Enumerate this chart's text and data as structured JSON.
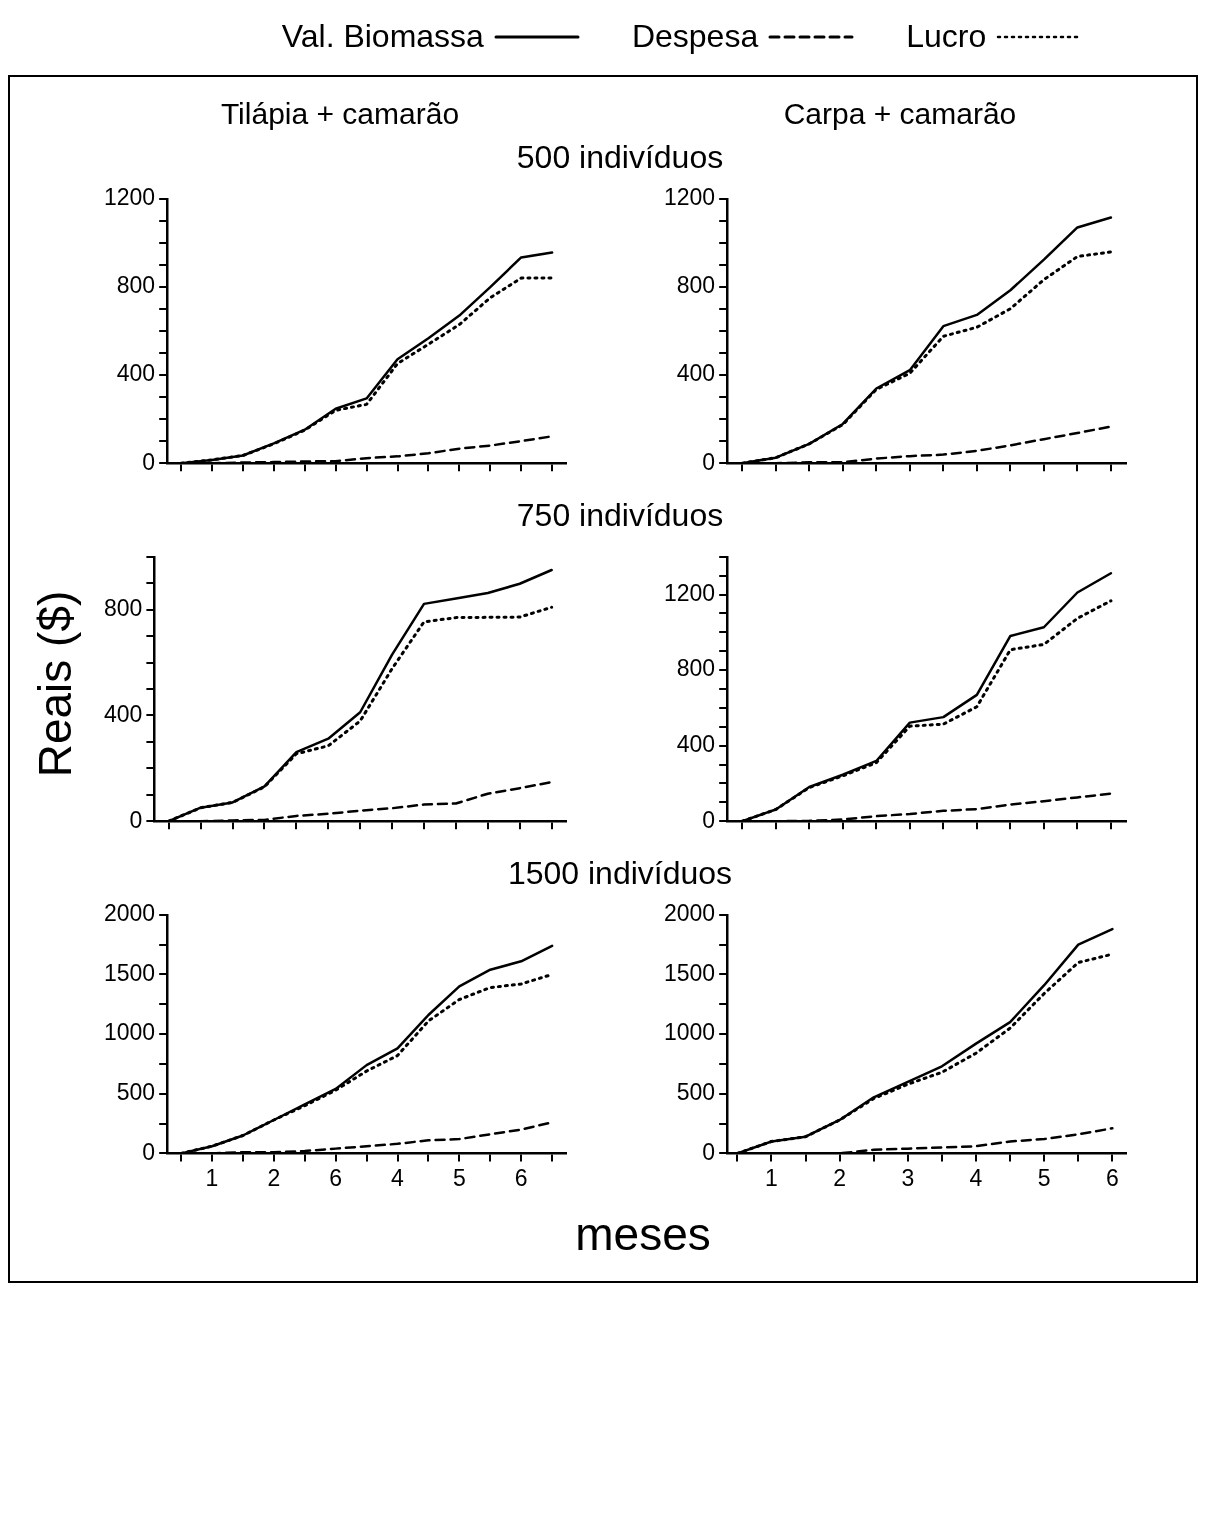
{
  "chart_data": [
    {
      "type": "line",
      "title": "Tilápia + camarão",
      "legend": "top",
      "tick_labels": "y",
      "grid": false,
      "categories": [
        null,
        null,
        null,
        null,
        null,
        null,
        null,
        null,
        null,
        null,
        null,
        null,
        null
      ],
      "ylim": [
        0,
        1200
      ],
      "yticks": [
        0,
        {
          "value": 100,
          "label": null
        },
        {
          "value": 200,
          "label": null
        },
        {
          "value": 300,
          "label": null
        },
        400,
        {
          "value": 500,
          "label": null
        },
        {
          "value": 600,
          "label": null
        },
        {
          "value": 700,
          "label": null
        },
        800,
        {
          "value": 900,
          "label": null
        },
        {
          "value": 1000,
          "label": null
        },
        {
          "value": 1100,
          "label": null
        },
        1200
      ],
      "series": [
        {
          "name": "Val. Biomassa",
          "color": "#000000",
          "line_style": "solid",
          "values": [
            0,
            15,
            35,
            90,
            152,
            247,
            294,
            472,
            567,
            670,
            799,
            934,
            956
          ]
        },
        {
          "name": "Despesa",
          "color": "#000000",
          "line_style": "dashed",
          "values": [
            0,
            0,
            3,
            5,
            8,
            9,
            23,
            31,
            45,
            66,
            80,
            100,
            122
          ]
        },
        {
          "name": "Lucro",
          "color": "#000000",
          "line_style": "dotted",
          "values": [
            0,
            15,
            35,
            88,
            150,
            240,
            267,
            452,
            540,
            629,
            751,
            840,
            841
          ]
        }
      ]
    },
    {
      "type": "line",
      "title": "Carpa + camarão",
      "subtitle": "500 indivíduos",
      "tick_labels": "y",
      "grid": false,
      "categories": [
        null,
        null,
        null,
        null,
        null,
        null,
        null,
        null,
        null,
        null,
        null,
        null
      ],
      "ylim": [
        0,
        1200
      ],
      "yticks": [
        0,
        {
          "value": 100,
          "label": null
        },
        {
          "value": 200,
          "label": null
        },
        {
          "value": 300,
          "label": null
        },
        400,
        {
          "value": 500,
          "label": null
        },
        {
          "value": 600,
          "label": null
        },
        {
          "value": 700,
          "label": null
        },
        800,
        {
          "value": 900,
          "label": null
        },
        {
          "value": 1000,
          "label": null
        },
        {
          "value": 1100,
          "label": null
        },
        1200
      ],
      "series": [
        {
          "color": "#000000",
          "line_style": "solid",
          "values": [
            0,
            25,
            88,
            178,
            339,
            422,
            622,
            673,
            785,
            924,
            1070,
            1115
          ]
        },
        {
          "color": "#000000",
          "line_style": "dashed",
          "values": [
            0,
            0,
            4,
            4,
            21,
            32,
            39,
            56,
            81,
            109,
            137,
            166
          ]
        },
        {
          "color": "#000000",
          "line_style": "dotted",
          "values": [
            0,
            25,
            88,
            175,
            335,
            408,
            576,
            617,
            701,
            833,
            938,
            959
          ]
        }
      ]
    },
    {
      "type": "line",
      "ylabel": "Reais ($)",
      "tick_labels": "y",
      "grid": false,
      "categories": [
        null,
        null,
        null,
        null,
        null,
        null,
        null,
        null,
        null,
        null,
        null,
        null,
        null
      ],
      "ylim": [
        0,
        1000
      ],
      "yticks": [
        0,
        {
          "value": 100,
          "label": null
        },
        {
          "value": 200,
          "label": null
        },
        {
          "value": 300,
          "label": null
        },
        400,
        {
          "value": 500,
          "label": null
        },
        {
          "value": 600,
          "label": null
        },
        {
          "value": 700,
          "label": null
        },
        800,
        {
          "value": 900,
          "label": null
        },
        {
          "value": 1000,
          "label": null
        }
      ],
      "series": [
        {
          "color": "#000000",
          "line_style": "solid",
          "values": [
            0,
            51,
            71,
            132,
            261,
            312,
            412,
            630,
            822,
            842,
            863,
            898,
            950
          ]
        },
        {
          "color": "#000000",
          "line_style": "dashed",
          "values": [
            0,
            0,
            3,
            5,
            20,
            28,
            40,
            49,
            63,
            67,
            104,
            125,
            148
          ]
        },
        {
          "color": "#000000",
          "line_style": "dotted",
          "values": [
            0,
            51,
            71,
            130,
            255,
            285,
            379,
            577,
            754,
            770,
            771,
            772,
            809
          ]
        }
      ]
    },
    {
      "type": "line",
      "subtitle": "750 indivíduos",
      "tick_labels": "y",
      "grid": false,
      "categories": [
        null,
        null,
        null,
        null,
        null,
        null,
        null,
        null,
        null,
        null,
        null,
        null
      ],
      "ylim": [
        0,
        1400
      ],
      "yticks": [
        0,
        {
          "value": 100,
          "label": null
        },
        {
          "value": 200,
          "label": null
        },
        {
          "value": 300,
          "label": null
        },
        400,
        {
          "value": 500,
          "label": null
        },
        {
          "value": 600,
          "label": null
        },
        {
          "value": 700,
          "label": null
        },
        800,
        {
          "value": 900,
          "label": null
        },
        {
          "value": 1000,
          "label": null
        },
        {
          "value": 1100,
          "label": null
        },
        1200,
        {
          "value": 1300,
          "label": null
        },
        {
          "value": 1400,
          "label": null
        }
      ],
      "series": [
        {
          "color": "#000000",
          "line_style": "solid",
          "values": [
            0,
            62,
            181,
            246,
            319,
            522,
            551,
            669,
            981,
            1027,
            1211,
            1313
          ]
        },
        {
          "color": "#000000",
          "line_style": "dashed",
          "values": [
            0,
            0,
            2,
            9,
            27,
            38,
            55,
            64,
            88,
            106,
            126,
            146
          ]
        },
        {
          "color": "#000000",
          "line_style": "dotted",
          "values": [
            0,
            62,
            178,
            240,
            310,
            503,
            514,
            606,
            908,
            936,
            1074,
            1167
          ]
        }
      ]
    },
    {
      "type": "line",
      "xlabel": "meses",
      "grid": false,
      "categories": [
        null,
        "1",
        null,
        "2",
        null,
        "6",
        null,
        "4",
        null,
        "5",
        null,
        "6",
        null
      ],
      "ylim": [
        0,
        2000
      ],
      "yticks": [
        0,
        {
          "value": 250,
          "label": null
        },
        500,
        {
          "value": 750,
          "label": null
        },
        1000,
        {
          "value": 1250,
          "label": null
        },
        1500,
        {
          "value": 1750,
          "label": null
        },
        2000
      ],
      "series": [
        {
          "color": "#000000",
          "line_style": "solid",
          "values": [
            0,
            60,
            150,
            280,
            410,
            540,
            740,
            880,
            1160,
            1400,
            1540,
            1610,
            1740
          ]
        },
        {
          "color": "#000000",
          "line_style": "dashed",
          "values": [
            0,
            0,
            10,
            10,
            20,
            40,
            60,
            80,
            110,
            120,
            160,
            200,
            260
          ]
        },
        {
          "color": "#000000",
          "line_style": "dotted",
          "values": [
            0,
            60,
            150,
            280,
            400,
            530,
            690,
            820,
            1110,
            1290,
            1390,
            1420,
            1500
          ]
        }
      ]
    },
    {
      "type": "line",
      "subtitle": "1500 indivíduos",
      "grid": false,
      "x": [
        0.5,
        1,
        1.5,
        2,
        2.5,
        3,
        3.5,
        4,
        4.5,
        5,
        5.5,
        6
      ],
      "xlim": [
        0.35,
        6.2
      ],
      "xticks": [
        {
          "value": 0.5,
          "label": null
        },
        1,
        {
          "value": 1.5,
          "label": null
        },
        2,
        {
          "value": 2.5,
          "label": null
        },
        3,
        {
          "value": 3.5,
          "label": null
        },
        4,
        {
          "value": 4.5,
          "label": null
        },
        5,
        {
          "value": 5.5,
          "label": null
        },
        6
      ],
      "ylim": [
        0,
        2000
      ],
      "yticks": [
        0,
        {
          "value": 250,
          "label": null
        },
        500,
        {
          "value": 750,
          "label": null
        },
        1000,
        {
          "value": 1250,
          "label": null
        },
        1500,
        {
          "value": 1750,
          "label": null
        },
        2000
      ],
      "series": [
        {
          "color": "#000000",
          "line_style": "solid",
          "values": [
            0,
            100,
            140,
            280,
            470,
            600,
            730,
            920,
            1100,
            1410,
            1750,
            1880
          ]
        },
        {
          "color": "#000000",
          "line_style": "dashed",
          "values": [
            0,
            0,
            0,
            0,
            30,
            40,
            50,
            60,
            100,
            120,
            160,
            210
          ]
        },
        {
          "color": "#000000",
          "line_style": "dotted",
          "values": [
            0,
            100,
            140,
            280,
            460,
            580,
            680,
            840,
            1050,
            1340,
            1600,
            1670
          ]
        }
      ]
    }
  ]
}
